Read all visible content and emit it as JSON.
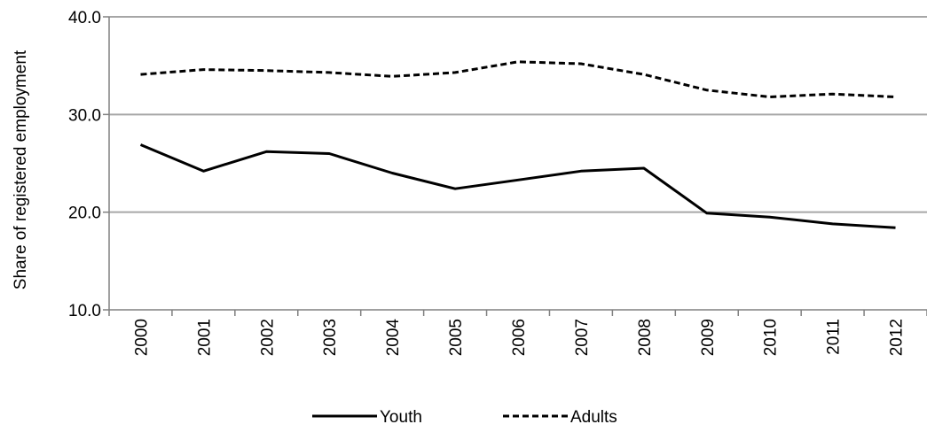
{
  "chart_data": {
    "type": "line",
    "title": "",
    "xlabel": "",
    "ylabel": "Share of registered employment",
    "ylim": [
      10,
      40
    ],
    "yticks": [
      "10.0",
      "20.0",
      "30.0",
      "40.0"
    ],
    "ytick_values": [
      10,
      20,
      30,
      40
    ],
    "grid": "horizontal",
    "legend_position": "bottom",
    "categories": [
      "2000",
      "2001",
      "2002",
      "2003",
      "2004",
      "2005",
      "2006",
      "2007",
      "2008",
      "2009",
      "2010",
      "2011",
      "2012"
    ],
    "series": [
      {
        "name": "Youth",
        "style": "solid",
        "color": "#000000",
        "values": [
          26.9,
          24.2,
          26.2,
          26.0,
          24.0,
          22.4,
          23.3,
          24.2,
          24.5,
          19.9,
          19.5,
          18.8,
          18.4
        ]
      },
      {
        "name": "Adults",
        "style": "dashed",
        "color": "#000000",
        "values": [
          34.1,
          34.6,
          34.5,
          34.3,
          33.9,
          34.3,
          35.4,
          35.2,
          34.1,
          32.5,
          31.8,
          32.1,
          31.8
        ]
      }
    ],
    "colors": {
      "grid": "#a6a6a6",
      "axis": "#808080"
    }
  }
}
